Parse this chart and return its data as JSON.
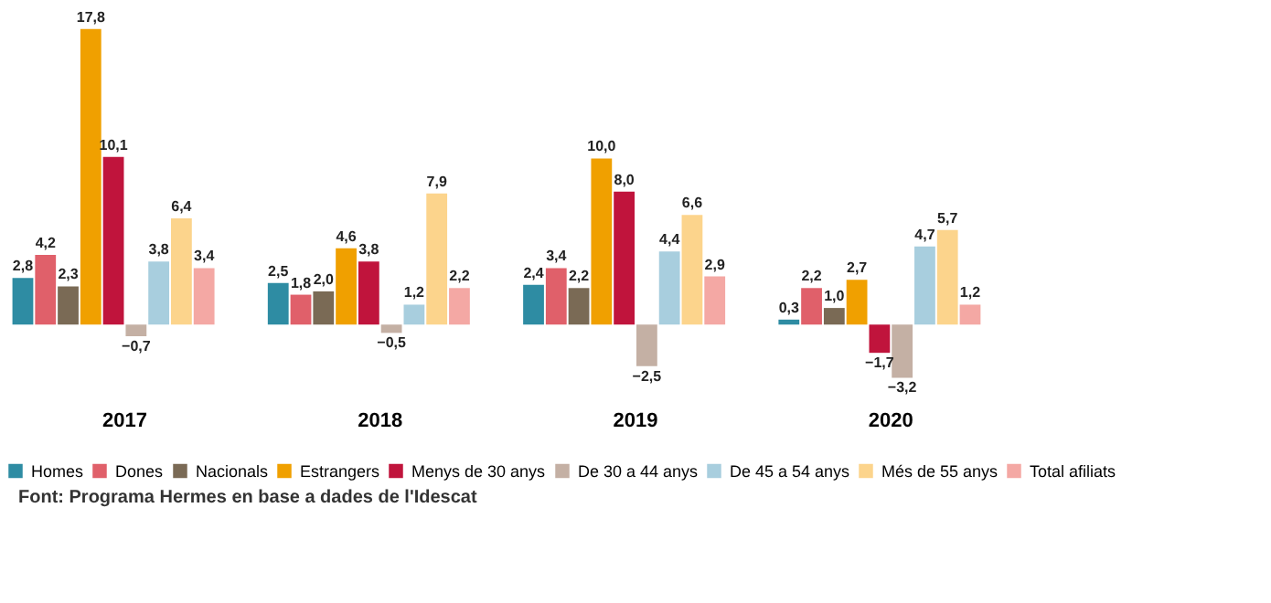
{
  "chart_data": {
    "type": "bar",
    "categories": [
      "2017",
      "2018",
      "2019",
      "2020"
    ],
    "legend": "bottom",
    "grid": false,
    "annotations": [
      "Font: Programa Hermes en base a dades de l'Idescat"
    ],
    "series": [
      {
        "name": "Homes",
        "color": "#2e8ca3",
        "values": [
          2.8,
          2.5,
          2.4,
          0.3
        ],
        "value_labels": [
          "2,8",
          "2,5",
          "2,4",
          "0,3"
        ]
      },
      {
        "name": "Dones",
        "color": "#e0606a",
        "values": [
          4.2,
          1.8,
          3.4,
          2.2
        ],
        "value_labels": [
          "4,2",
          "1,8",
          "3,4",
          "2,2"
        ]
      },
      {
        "name": "Nacionals",
        "color": "#7a6a55",
        "values": [
          2.3,
          2.0,
          2.2,
          1.0
        ],
        "value_labels": [
          "2,3",
          "2,0",
          "2,2",
          "1,0"
        ]
      },
      {
        "name": "Estrangers",
        "color": "#f0a000",
        "values": [
          17.8,
          4.6,
          10.0,
          2.7
        ],
        "value_labels": [
          "17,8",
          "4,6",
          "10,0",
          "2,7"
        ]
      },
      {
        "name": "Menys de 30 anys",
        "color": "#c0143c",
        "values": [
          10.1,
          3.8,
          8.0,
          -1.7
        ],
        "value_labels": [
          "10,1",
          "3,8",
          "8,0",
          "−1,7"
        ]
      },
      {
        "name": "De 30 a 44 anys",
        "color": "#c4b0a4",
        "values": [
          -0.7,
          -0.5,
          -2.5,
          -3.2
        ],
        "value_labels": [
          "−0,7",
          "−0,5",
          "−2,5",
          "−3,2"
        ]
      },
      {
        "name": "De 45 a 54 anys",
        "color": "#a8cede",
        "values": [
          3.8,
          1.2,
          4.4,
          4.7
        ],
        "value_labels": [
          "3,8",
          "1,2",
          "4,4",
          "4,7"
        ]
      },
      {
        "name": "Més de 55 anys",
        "color": "#fcd48c",
        "values": [
          6.4,
          7.9,
          6.6,
          5.7
        ],
        "value_labels": [
          "6,4",
          "7,9",
          "6,6",
          "5,7"
        ]
      },
      {
        "name": "Total afiliats",
        "color": "#f4a8a4",
        "values": [
          3.4,
          2.2,
          2.9,
          1.2
        ],
        "value_labels": [
          "3,4",
          "2,2",
          "2,9",
          "1,2"
        ]
      }
    ]
  }
}
